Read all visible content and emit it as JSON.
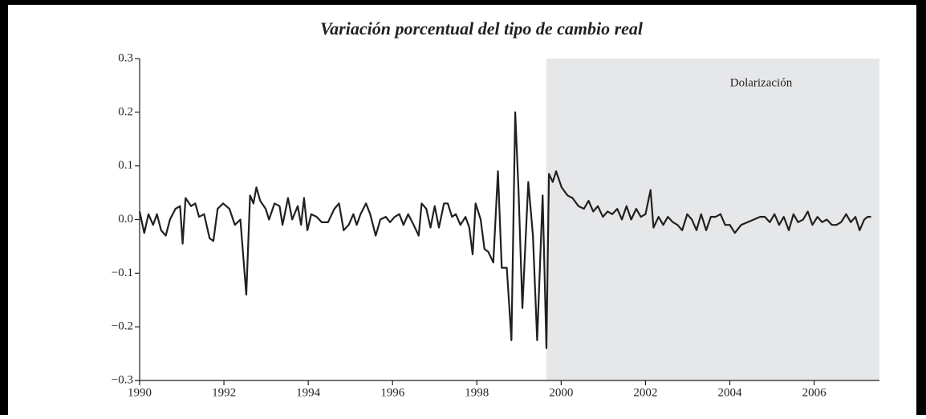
{
  "chart_data": {
    "type": "line",
    "title": "Variación porcentual del tipo de cambio real",
    "annotation": "Dolarización",
    "shaded_region": {
      "start": 1999.65,
      "end": 2007.55,
      "color": "#e6e7e9"
    },
    "xlim": [
      1990,
      2007.55
    ],
    "xticks": [
      1990,
      1992,
      1994,
      1996,
      1998,
      2000,
      2002,
      2004,
      2006
    ],
    "ylim": [
      -0.3,
      0.3
    ],
    "yticks": [
      {
        "value": -0.3,
        "label": "−0.3"
      },
      {
        "value": -0.2,
        "label": "−0.2"
      },
      {
        "value": -0.1,
        "label": "−0.1"
      },
      {
        "value": 0,
        "label": "0.0"
      },
      0.1,
      0.2,
      0.3
    ],
    "grid": false,
    "x": [
      1990.0,
      1990.11,
      1990.21,
      1990.32,
      1990.41,
      1990.51,
      1990.62,
      1990.72,
      1990.85,
      1990.96,
      1991.02,
      1991.09,
      1991.22,
      1991.32,
      1991.41,
      1991.53,
      1991.66,
      1991.75,
      1991.85,
      1991.98,
      1992.13,
      1992.26,
      1992.39,
      1992.53,
      1992.62,
      1992.7,
      1992.77,
      1992.86,
      1992.99,
      1993.07,
      1993.2,
      1993.32,
      1993.39,
      1993.52,
      1993.62,
      1993.75,
      1993.83,
      1993.9,
      1993.98,
      1994.07,
      1994.2,
      1994.32,
      1994.47,
      1994.62,
      1994.73,
      1994.84,
      1994.96,
      1995.07,
      1995.15,
      1995.24,
      1995.37,
      1995.47,
      1995.6,
      1995.71,
      1995.84,
      1995.94,
      1996.05,
      1996.16,
      1996.26,
      1996.37,
      1996.5,
      1996.62,
      1996.69,
      1996.8,
      1996.9,
      1997.0,
      1997.1,
      1997.22,
      1997.31,
      1997.41,
      1997.5,
      1997.61,
      1997.73,
      1997.82,
      1997.9,
      1997.97,
      1998.09,
      1998.18,
      1998.27,
      1998.39,
      1998.5,
      1998.59,
      1998.71,
      1998.82,
      1998.91,
      1998.99,
      1999.08,
      1999.22,
      1999.33,
      1999.43,
      1999.56,
      1999.65,
      1999.71,
      1999.8,
      1999.88,
      2000.01,
      2000.15,
      2000.27,
      2000.41,
      2000.54,
      2000.65,
      2000.76,
      2000.87,
      2000.99,
      2001.1,
      2001.21,
      2001.33,
      2001.44,
      2001.55,
      2001.66,
      2001.78,
      2001.89,
      2002.0,
      2002.12,
      2002.19,
      2002.31,
      2002.42,
      2002.53,
      2002.65,
      2002.76,
      2002.87,
      2002.99,
      2003.1,
      2003.21,
      2003.32,
      2003.44,
      2003.55,
      2003.66,
      2003.78,
      2003.89,
      2004.0,
      2004.12,
      2004.27,
      2004.42,
      2004.57,
      2004.72,
      2004.83,
      2004.95,
      2005.06,
      2005.17,
      2005.28,
      2005.4,
      2005.51,
      2005.62,
      2005.74,
      2005.85,
      2005.96,
      2006.08,
      2006.19,
      2006.3,
      2006.42,
      2006.53,
      2006.64,
      2006.76,
      2006.87,
      2006.98,
      2007.08,
      2007.19,
      2007.27,
      2007.35
    ],
    "series": [
      {
        "color": "#231f20",
        "values": [
          0.015,
          -0.025,
          0.01,
          -0.01,
          0.01,
          -0.02,
          -0.03,
          0.0,
          0.02,
          0.025,
          -0.045,
          0.04,
          0.025,
          0.03,
          0.005,
          0.01,
          -0.035,
          -0.04,
          0.02,
          0.03,
          0.02,
          -0.01,
          0.0,
          -0.14,
          0.045,
          0.03,
          0.06,
          0.035,
          0.02,
          0.0,
          0.03,
          0.025,
          -0.01,
          0.04,
          0.0,
          0.025,
          -0.01,
          0.04,
          -0.02,
          0.01,
          0.005,
          -0.005,
          -0.005,
          0.02,
          0.03,
          -0.02,
          -0.01,
          0.01,
          -0.01,
          0.01,
          0.03,
          0.01,
          -0.03,
          0.0,
          0.005,
          -0.005,
          0.005,
          0.01,
          -0.01,
          0.01,
          -0.01,
          -0.03,
          0.03,
          0.02,
          -0.015,
          0.025,
          -0.015,
          0.03,
          0.03,
          0.005,
          0.01,
          -0.01,
          0.005,
          -0.015,
          -0.065,
          0.03,
          0.0,
          -0.055,
          -0.06,
          -0.08,
          0.09,
          -0.09,
          -0.09,
          -0.225,
          0.2,
          0.05,
          -0.165,
          0.07,
          -0.03,
          -0.225,
          0.045,
          -0.24,
          0.085,
          0.07,
          0.09,
          0.06,
          0.045,
          0.04,
          0.025,
          0.02,
          0.035,
          0.015,
          0.025,
          0.005,
          0.015,
          0.01,
          0.02,
          0.0,
          0.025,
          0.0,
          0.02,
          0.005,
          0.01,
          0.055,
          -0.015,
          0.005,
          -0.01,
          0.005,
          -0.005,
          -0.01,
          -0.02,
          0.01,
          0.0,
          -0.02,
          0.01,
          -0.02,
          0.005,
          0.005,
          0.01,
          -0.01,
          -0.01,
          -0.025,
          -0.01,
          -0.005,
          0.0,
          0.005,
          0.005,
          -0.005,
          0.01,
          -0.01,
          0.005,
          -0.02,
          0.01,
          -0.005,
          0.0,
          0.015,
          -0.01,
          0.005,
          -0.005,
          0.0,
          -0.01,
          -0.01,
          -0.005,
          0.01,
          -0.005,
          0.005,
          -0.02,
          0.0,
          0.005,
          0.005
        ]
      }
    ]
  }
}
